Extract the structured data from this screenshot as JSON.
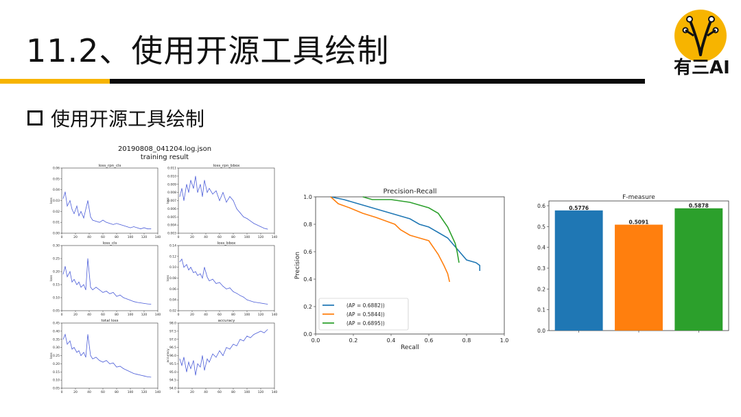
{
  "slide": {
    "title": "11.2、使用开源工具绘制",
    "section": "使用开源工具绘制",
    "logo_text": "有三AI",
    "accent_yellow": "#f7b400",
    "accent_black": "#0a0a0a"
  },
  "training_figure": {
    "title_line1": "20190808_041204.log.json",
    "title_line2": "training result",
    "line_color": "#4a5cd8"
  },
  "chart_data": [
    {
      "type": "line",
      "title": "loss_rpn_cls",
      "ylabel": "loss",
      "xlim": [
        0,
        140
      ],
      "ylim": [
        0.0,
        0.06
      ],
      "xticks": [
        "0",
        "20",
        "40",
        "60",
        "80",
        "100",
        "120",
        "140"
      ],
      "yticks": [
        "0.00",
        "0.01",
        "0.02",
        "0.03",
        "0.04",
        "0.05",
        "0.06"
      ],
      "x": [
        2,
        5,
        8,
        12,
        15,
        18,
        22,
        25,
        28,
        32,
        35,
        38,
        42,
        45,
        50,
        55,
        60,
        65,
        70,
        75,
        80,
        85,
        90,
        95,
        100,
        105,
        110,
        115,
        120,
        125,
        130
      ],
      "y": [
        0.032,
        0.038,
        0.025,
        0.03,
        0.022,
        0.018,
        0.025,
        0.016,
        0.02,
        0.014,
        0.022,
        0.03,
        0.015,
        0.012,
        0.011,
        0.01,
        0.012,
        0.01,
        0.009,
        0.008,
        0.009,
        0.008,
        0.007,
        0.006,
        0.005,
        0.006,
        0.005,
        0.004,
        0.005,
        0.004,
        0.004
      ]
    },
    {
      "type": "line",
      "title": "loss_rpn_bbox",
      "ylabel": "loss",
      "xlim": [
        0,
        140
      ],
      "ylim": [
        0.003,
        0.011
      ],
      "xticks": [
        "0",
        "20",
        "40",
        "60",
        "80",
        "100",
        "120",
        "140"
      ],
      "yticks": [
        "0.003",
        "0.004",
        "0.005",
        "0.006",
        "0.007",
        "0.008",
        "0.009",
        "0.010",
        "0.011"
      ],
      "x": [
        2,
        5,
        8,
        12,
        15,
        18,
        22,
        25,
        28,
        32,
        35,
        38,
        42,
        45,
        50,
        55,
        60,
        65,
        70,
        75,
        80,
        85,
        90,
        95,
        100,
        105,
        110,
        115,
        120,
        125,
        130
      ],
      "y": [
        0.0075,
        0.0085,
        0.007,
        0.009,
        0.008,
        0.0095,
        0.0085,
        0.01,
        0.008,
        0.009,
        0.0075,
        0.0095,
        0.008,
        0.0085,
        0.0078,
        0.0082,
        0.007,
        0.008,
        0.0068,
        0.0075,
        0.007,
        0.006,
        0.0055,
        0.005,
        0.0048,
        0.0045,
        0.0042,
        0.004,
        0.0038,
        0.0036,
        0.0035
      ]
    },
    {
      "type": "line",
      "title": "loss_cls",
      "ylabel": "loss",
      "xlim": [
        0,
        140
      ],
      "ylim": [
        0.05,
        0.3
      ],
      "xticks": [
        "0",
        "20",
        "40",
        "60",
        "80",
        "100",
        "120",
        "140"
      ],
      "yticks": [
        "0.05",
        "0.10",
        "0.15",
        "0.20",
        "0.25",
        "0.30"
      ],
      "x": [
        2,
        5,
        8,
        12,
        15,
        18,
        22,
        25,
        28,
        32,
        35,
        38,
        42,
        45,
        50,
        55,
        60,
        65,
        70,
        75,
        80,
        85,
        90,
        95,
        100,
        105,
        110,
        115,
        120,
        125,
        130
      ],
      "y": [
        0.19,
        0.22,
        0.18,
        0.2,
        0.16,
        0.17,
        0.15,
        0.16,
        0.14,
        0.15,
        0.13,
        0.25,
        0.14,
        0.13,
        0.14,
        0.13,
        0.12,
        0.125,
        0.115,
        0.12,
        0.105,
        0.11,
        0.1,
        0.095,
        0.09,
        0.085,
        0.082,
        0.08,
        0.078,
        0.076,
        0.075
      ]
    },
    {
      "type": "line",
      "title": "loss_bbox",
      "ylabel": "loss",
      "xlim": [
        0,
        140
      ],
      "ylim": [
        0.02,
        0.14
      ],
      "xticks": [
        "0",
        "20",
        "40",
        "60",
        "80",
        "100",
        "120",
        "140"
      ],
      "yticks": [
        "0.02",
        "0.04",
        "0.06",
        "0.08",
        "0.10",
        "0.12",
        "0.14"
      ],
      "x": [
        2,
        5,
        8,
        12,
        15,
        18,
        22,
        25,
        28,
        32,
        35,
        38,
        42,
        45,
        50,
        55,
        60,
        65,
        70,
        75,
        80,
        85,
        90,
        95,
        100,
        105,
        110,
        115,
        120,
        125,
        130
      ],
      "y": [
        0.11,
        0.115,
        0.1,
        0.105,
        0.095,
        0.1,
        0.09,
        0.092,
        0.085,
        0.088,
        0.08,
        0.1,
        0.082,
        0.075,
        0.078,
        0.07,
        0.072,
        0.065,
        0.06,
        0.062,
        0.055,
        0.052,
        0.048,
        0.045,
        0.04,
        0.038,
        0.036,
        0.035,
        0.034,
        0.033,
        0.032
      ]
    },
    {
      "type": "line",
      "title": "total loss",
      "ylabel": "loss",
      "xlim": [
        0,
        140
      ],
      "ylim": [
        0.05,
        0.45
      ],
      "xticks": [
        "0",
        "20",
        "40",
        "60",
        "80",
        "100",
        "120",
        "140"
      ],
      "yticks": [
        "0.05",
        "0.10",
        "0.15",
        "0.20",
        "0.25",
        "0.30",
        "0.35",
        "0.40",
        "0.45"
      ],
      "x": [
        2,
        5,
        8,
        12,
        15,
        18,
        22,
        25,
        28,
        32,
        35,
        38,
        42,
        45,
        50,
        55,
        60,
        65,
        70,
        75,
        80,
        85,
        90,
        95,
        100,
        105,
        110,
        115,
        120,
        125,
        130
      ],
      "y": [
        0.35,
        0.38,
        0.32,
        0.34,
        0.29,
        0.3,
        0.27,
        0.28,
        0.25,
        0.27,
        0.24,
        0.38,
        0.25,
        0.23,
        0.24,
        0.22,
        0.21,
        0.22,
        0.2,
        0.205,
        0.18,
        0.185,
        0.17,
        0.16,
        0.15,
        0.14,
        0.135,
        0.13,
        0.125,
        0.12,
        0.118
      ]
    },
    {
      "type": "line",
      "title": "accuracy",
      "ylabel": "accuracy",
      "xlim": [
        0,
        140
      ],
      "ylim": [
        94.0,
        98.0
      ],
      "xticks": [
        "0",
        "20",
        "40",
        "60",
        "80",
        "100",
        "120",
        "140"
      ],
      "yticks": [
        "94.0",
        "94.5",
        "95.0",
        "95.5",
        "96.0",
        "96.5",
        "97.0",
        "97.5",
        "98.0"
      ],
      "x": [
        2,
        5,
        8,
        12,
        15,
        18,
        22,
        25,
        28,
        32,
        35,
        38,
        42,
        45,
        50,
        55,
        60,
        65,
        70,
        75,
        80,
        85,
        90,
        95,
        100,
        105,
        110,
        115,
        120,
        125,
        130
      ],
      "y": [
        95.8,
        95.4,
        95.9,
        95.0,
        95.6,
        95.2,
        95.7,
        94.8,
        95.5,
        95.3,
        96.0,
        95.1,
        95.8,
        95.6,
        96.1,
        95.9,
        96.3,
        96.0,
        96.5,
        96.4,
        96.7,
        96.6,
        97.0,
        96.9,
        97.2,
        97.1,
        97.3,
        97.4,
        97.5,
        97.4,
        97.6
      ]
    },
    {
      "type": "line",
      "title": "Precision-Recall",
      "xlabel": "Recall",
      "ylabel": "Precision",
      "xlim": [
        0.0,
        1.0
      ],
      "ylim": [
        0.0,
        1.0
      ],
      "xticks": [
        "0.0",
        "0.2",
        "0.4",
        "0.6",
        "0.8",
        "1.0"
      ],
      "yticks": [
        "0.0",
        "0.2",
        "0.4",
        "0.6",
        "0.8",
        "1.0"
      ],
      "legend_position": "lower-left",
      "series": [
        {
          "name": "(AP = 0.6882))",
          "color": "#1f77b4",
          "x": [
            0.08,
            0.15,
            0.2,
            0.25,
            0.3,
            0.35,
            0.4,
            0.45,
            0.5,
            0.55,
            0.6,
            0.65,
            0.7,
            0.75,
            0.8,
            0.85,
            0.87,
            0.87
          ],
          "y": [
            1.0,
            0.98,
            0.96,
            0.94,
            0.92,
            0.9,
            0.88,
            0.86,
            0.84,
            0.8,
            0.78,
            0.74,
            0.7,
            0.62,
            0.54,
            0.52,
            0.5,
            0.46
          ]
        },
        {
          "name": "(AP = 0.5844))",
          "color": "#ff7f0e",
          "x": [
            0.08,
            0.12,
            0.18,
            0.25,
            0.32,
            0.38,
            0.42,
            0.45,
            0.5,
            0.55,
            0.6,
            0.62,
            0.65,
            0.68,
            0.7,
            0.71
          ],
          "y": [
            1.0,
            0.95,
            0.92,
            0.88,
            0.85,
            0.82,
            0.8,
            0.76,
            0.72,
            0.7,
            0.68,
            0.64,
            0.58,
            0.5,
            0.44,
            0.38
          ]
        },
        {
          "name": "(AP = 0.6895))",
          "color": "#2ca02c",
          "x": [
            0.25,
            0.3,
            0.4,
            0.5,
            0.55,
            0.6,
            0.65,
            0.7,
            0.72,
            0.74,
            0.75,
            0.76
          ],
          "y": [
            1.0,
            0.98,
            0.98,
            0.96,
            0.94,
            0.92,
            0.88,
            0.78,
            0.72,
            0.66,
            0.6,
            0.52
          ]
        }
      ]
    },
    {
      "type": "bar",
      "title": "F-measure",
      "ylim": [
        0.0,
        0.6
      ],
      "yticks": [
        "0.0",
        "0.1",
        "0.2",
        "0.3",
        "0.4",
        "0.5",
        "0.6"
      ],
      "categories": [
        "",
        "",
        ""
      ],
      "values": [
        0.5776,
        0.5091,
        0.5878
      ],
      "value_labels": [
        "0.5776",
        "0.5091",
        "0.5878"
      ],
      "colors": [
        "#1f77b4",
        "#ff7f0e",
        "#2ca02c"
      ]
    }
  ]
}
